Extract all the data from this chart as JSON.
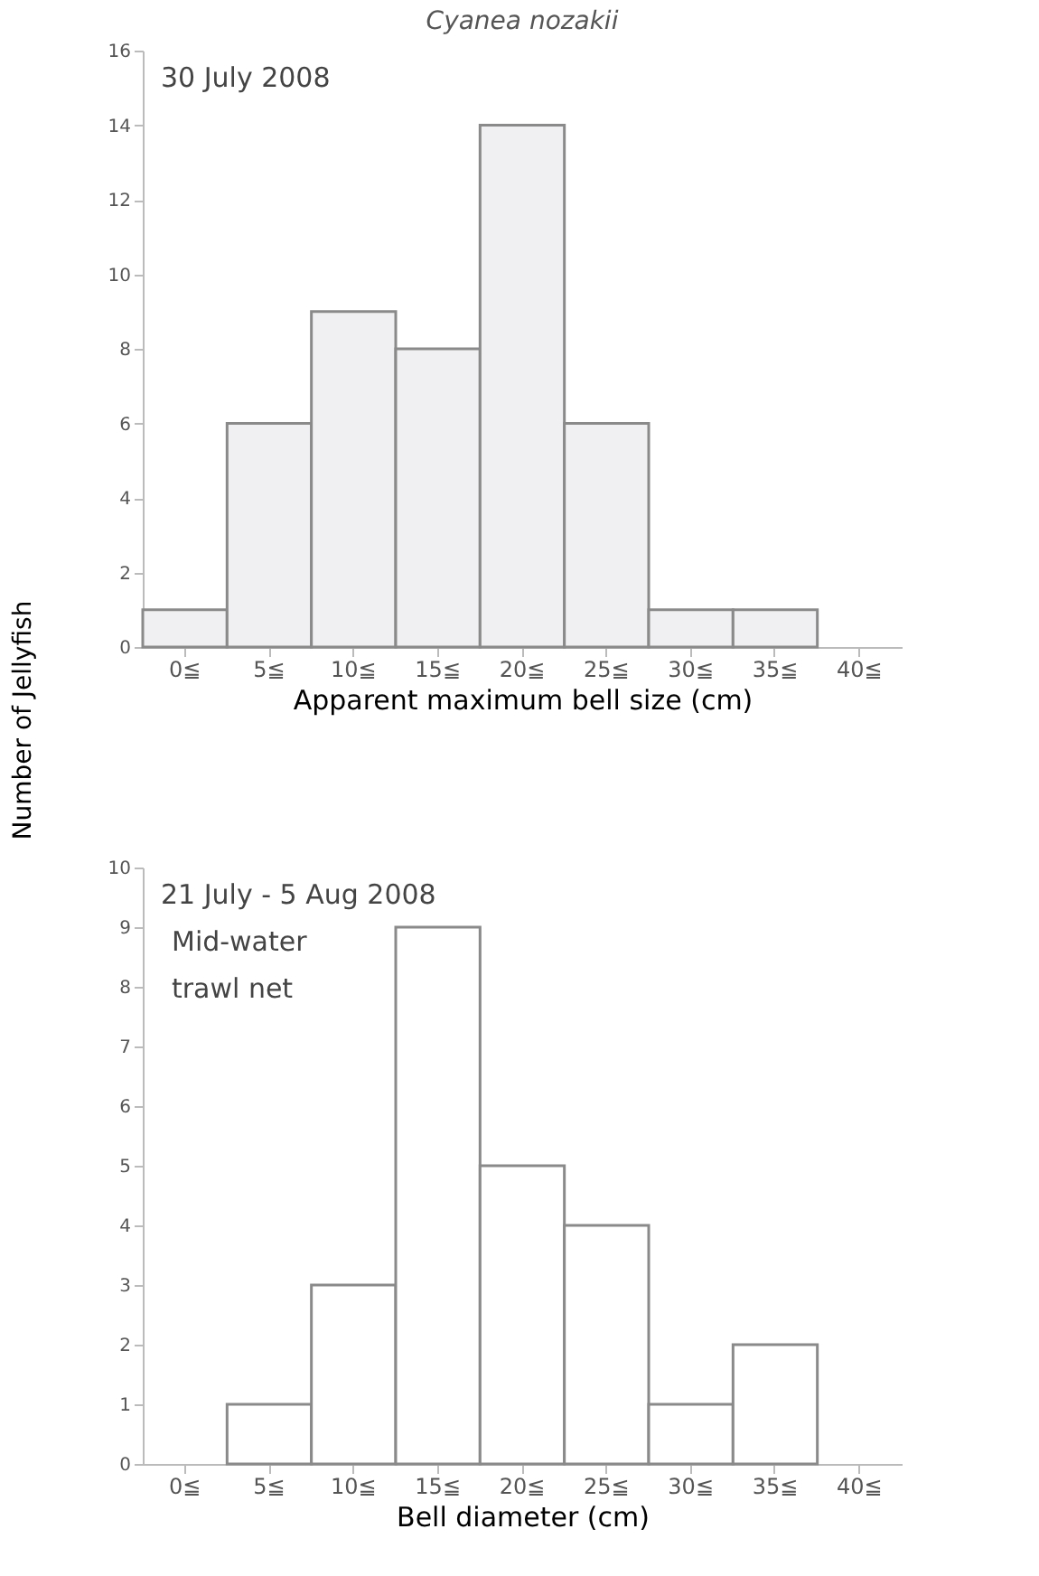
{
  "chart_data": [
    {
      "type": "bar",
      "title": "Cyanea nozakii",
      "categories": [
        "0≦",
        "5≦",
        "10≦",
        "15≦",
        "20≦",
        "25≦",
        "30≦",
        "35≦",
        "40≦"
      ],
      "values": [
        1,
        6,
        9,
        8,
        14,
        6,
        1,
        1,
        0
      ],
      "color": "#f0f0f2",
      "xlabel": "Apparent  maximum bell size  (cm)",
      "ylabel": "Number of Jellyfish",
      "ylim": [
        0,
        16
      ],
      "yticks": [
        0,
        2,
        4,
        6,
        8,
        10,
        12,
        14,
        16
      ],
      "grid": false,
      "annotations": [
        "30 July 2008"
      ]
    },
    {
      "type": "bar",
      "categories": [
        "0≦",
        "5≦",
        "10≦",
        "15≦",
        "20≦",
        "25≦",
        "30≦",
        "35≦",
        "40≦"
      ],
      "values": [
        0,
        1,
        3,
        9,
        5,
        4,
        1,
        2,
        0
      ],
      "color": "#ffffff",
      "xlabel": "Bell diameter  (cm)",
      "ylim": [
        0,
        10
      ],
      "yticks": [
        0,
        1,
        2,
        3,
        4,
        5,
        6,
        7,
        8,
        9,
        10
      ],
      "grid": false,
      "annotations": [
        "21 July - 5 Aug 2008",
        "Mid-water",
        "trawl net"
      ]
    }
  ]
}
